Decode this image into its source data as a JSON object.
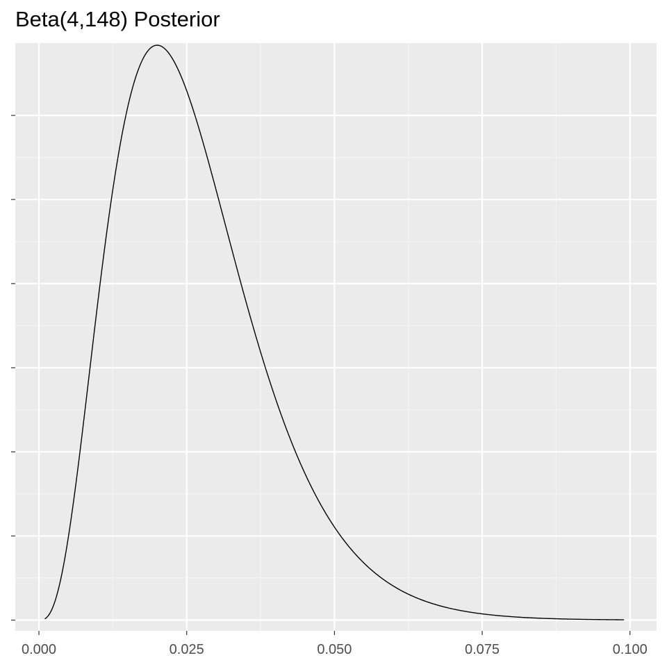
{
  "chart_data": {
    "type": "line",
    "title": "Beta(4,148) Posterior",
    "xlabel": "",
    "ylabel": "",
    "distribution": {
      "family": "Beta",
      "alpha": 4,
      "beta": 148
    },
    "x_range": [
      0.001,
      0.099
    ],
    "xlim": [
      -0.004,
      0.1045
    ],
    "ylim": [
      -0.64,
      34.3
    ],
    "x_ticks": [
      0.0,
      0.025,
      0.05,
      0.075,
      0.1
    ],
    "x_tick_labels": [
      "0.000",
      "0.025",
      "0.050",
      "0.075",
      "0.100"
    ],
    "y_ticks": [
      0,
      5,
      10,
      15,
      20,
      25,
      30
    ],
    "y_tick_labels": [],
    "grid": true,
    "legend": "none",
    "series": [
      {
        "line_color": "#000000"
      }
    ]
  },
  "colors": {
    "panel_background": "#ebebeb",
    "grid_major": "#ffffff",
    "grid_minor": "#f5f5f5",
    "line": "#000000",
    "tick_text": "#4d4d4d"
  }
}
